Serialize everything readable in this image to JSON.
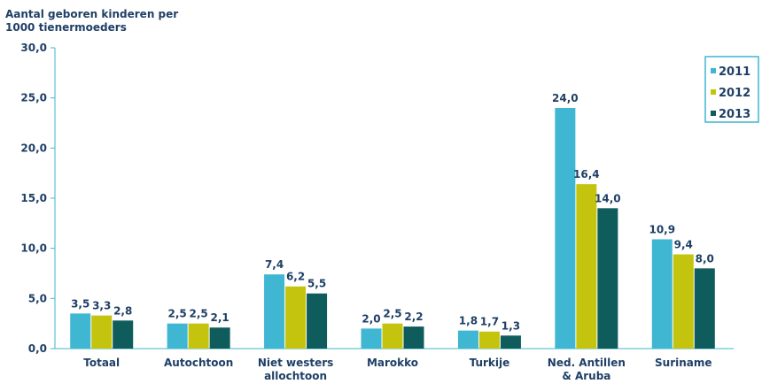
{
  "chart_data": {
    "type": "bar",
    "ylabel": [
      "Aantal geboren kinderen per",
      "1000 tienermoeders"
    ],
    "ylim": [
      0,
      30
    ],
    "yticks": [
      "0,0",
      "5,0",
      "10,0",
      "15,0",
      "20,0",
      "25,0",
      "30,0"
    ],
    "categories": [
      [
        "Totaal"
      ],
      [
        "Autochtoon"
      ],
      [
        "Niet westers",
        "allochtoon"
      ],
      [
        "Marokko"
      ],
      [
        "Turkije"
      ],
      [
        "Ned. Antillen",
        "& Aruba"
      ],
      [
        "Suriname"
      ]
    ],
    "series": [
      {
        "name": "2011",
        "color": "#3fb6d2",
        "values": [
          3.5,
          2.5,
          7.4,
          2.0,
          1.8,
          24.0,
          10.9
        ],
        "labels": [
          "3,5",
          "2,5",
          "7,4",
          "2,0",
          "1,8",
          "24,0",
          "10,9"
        ]
      },
      {
        "name": "2012",
        "color": "#c4c40e",
        "values": [
          3.3,
          2.5,
          6.2,
          2.5,
          1.7,
          16.4,
          9.4
        ],
        "labels": [
          "3,3",
          "2,5",
          "6,2",
          "2,5",
          "1,7",
          "16,4",
          "9,4"
        ]
      },
      {
        "name": "2013",
        "color": "#0e5c5c",
        "values": [
          2.8,
          2.1,
          5.5,
          2.2,
          1.3,
          14.0,
          8.0
        ],
        "labels": [
          "2,8",
          "2,1",
          "5,5",
          "2,2",
          "1,3",
          "14,0",
          "8,0"
        ]
      }
    ],
    "legend_position": "top-right",
    "grid": false,
    "axis_color": "#3fb6d2",
    "text_color": "#1f3f66"
  }
}
